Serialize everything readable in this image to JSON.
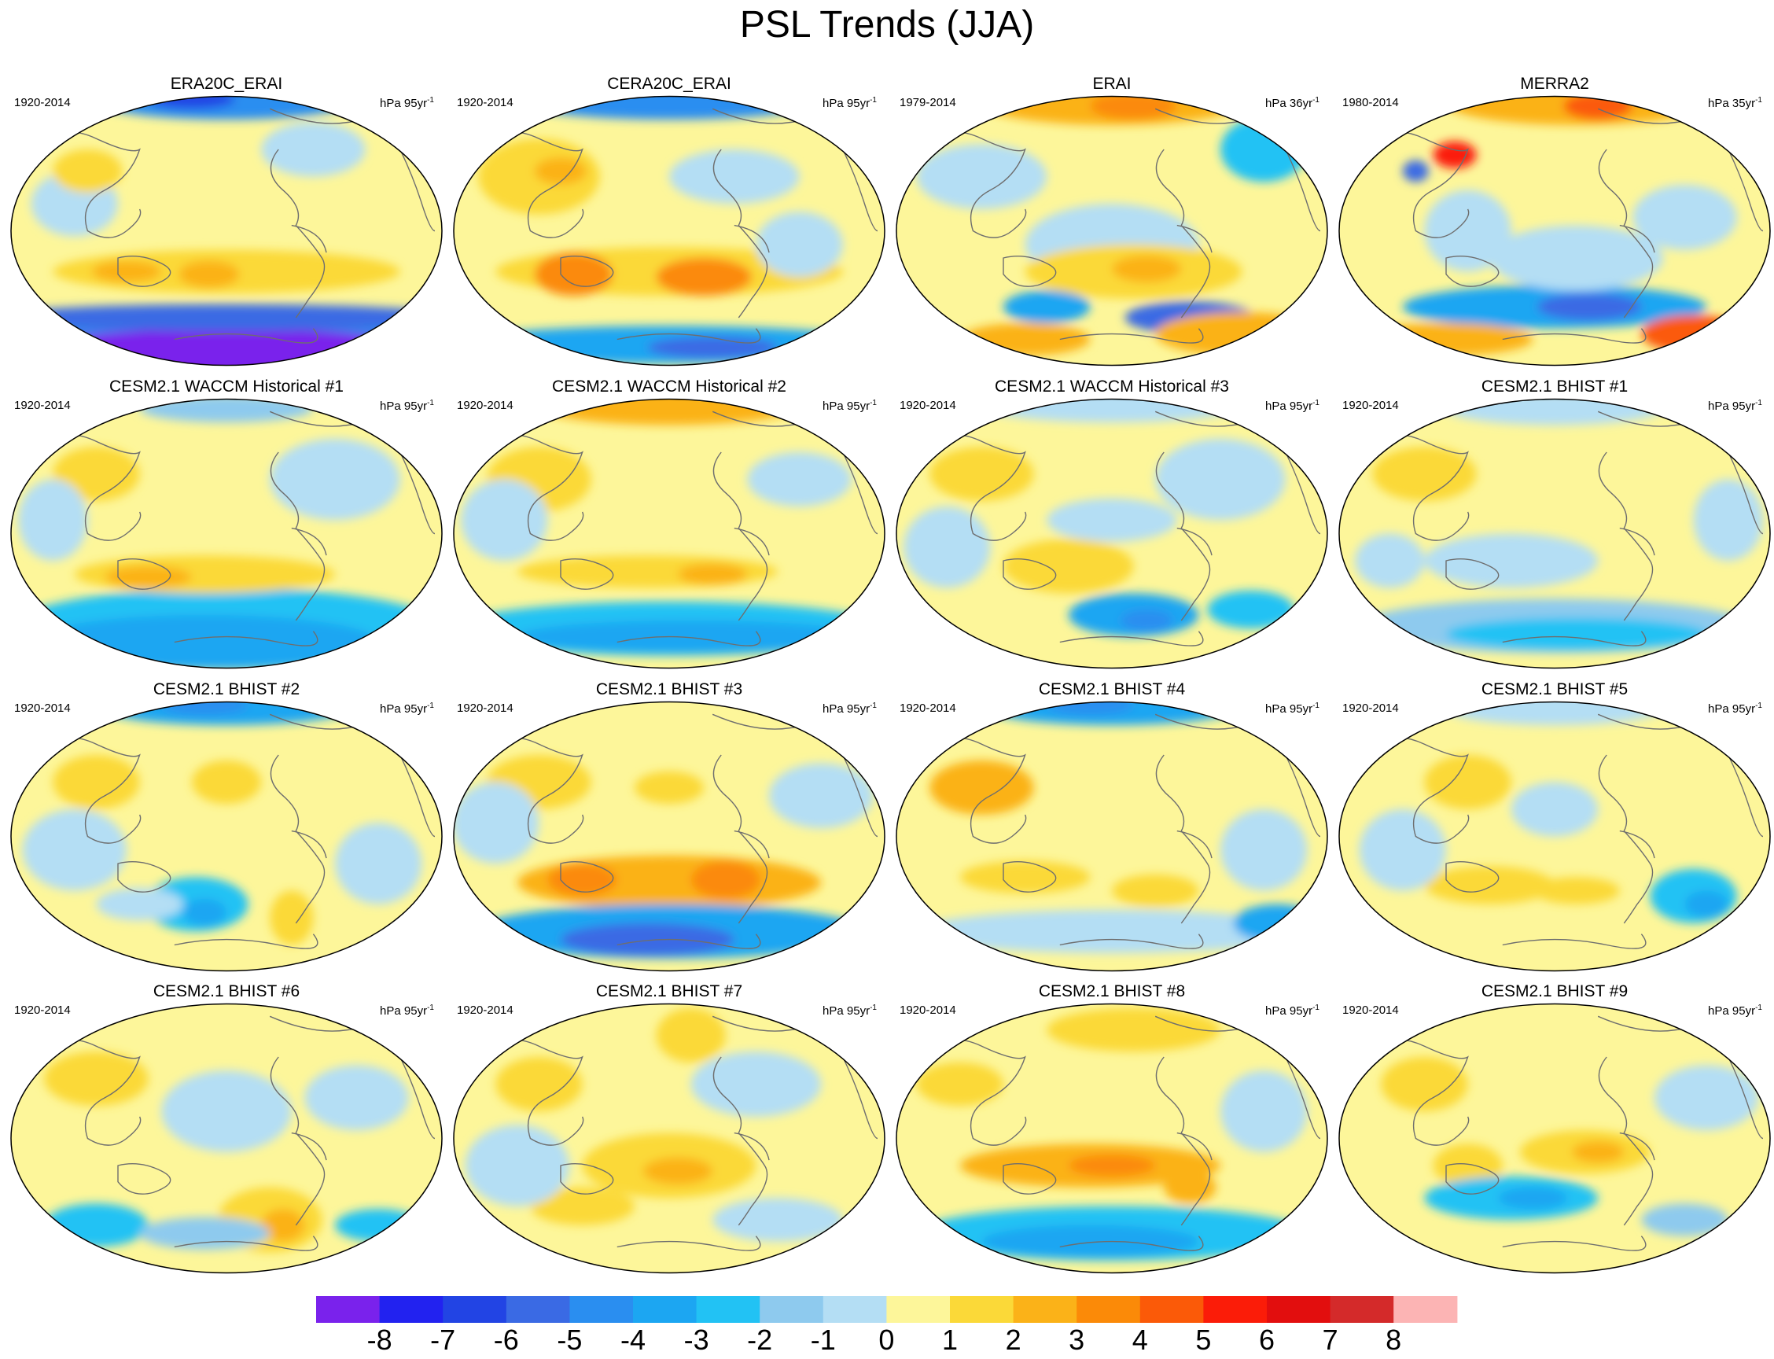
{
  "title": "PSL Trends (JJA)",
  "units_prefix": "hPa ",
  "units_suffix": "yr",
  "units_exp": "-1",
  "panels": [
    {
      "title": "ERA20C_ERAI",
      "period": "1920-2014",
      "years": "95"
    },
    {
      "title": "CERA20C_ERAI",
      "period": "1920-2014",
      "years": "95"
    },
    {
      "title": "ERAI",
      "period": "1979-2014",
      "years": "36"
    },
    {
      "title": "MERRA2",
      "period": "1980-2014",
      "years": "35"
    },
    {
      "title": "CESM2.1 WACCM Historical #1",
      "period": "1920-2014",
      "years": "95"
    },
    {
      "title": "CESM2.1 WACCM Historical #2",
      "period": "1920-2014",
      "years": "95"
    },
    {
      "title": "CESM2.1 WACCM Historical #3",
      "period": "1920-2014",
      "years": "95"
    },
    {
      "title": "CESM2.1 BHIST #1",
      "period": "1920-2014",
      "years": "95"
    },
    {
      "title": "CESM2.1 BHIST #2",
      "period": "1920-2014",
      "years": "95"
    },
    {
      "title": "CESM2.1 BHIST #3",
      "period": "1920-2014",
      "years": "95"
    },
    {
      "title": "CESM2.1 BHIST #4",
      "period": "1920-2014",
      "years": "95"
    },
    {
      "title": "CESM2.1 BHIST #5",
      "period": "1920-2014",
      "years": "95"
    },
    {
      "title": "CESM2.1 BHIST #6",
      "period": "1920-2014",
      "years": "95"
    },
    {
      "title": "CESM2.1 BHIST #7",
      "period": "1920-2014",
      "years": "95"
    },
    {
      "title": "CESM2.1 BHIST #8",
      "period": "1920-2014",
      "years": "95"
    },
    {
      "title": "CESM2.1 BHIST #9",
      "period": "1920-2014",
      "years": "95"
    }
  ],
  "colorbar": {
    "labels": [
      "-8",
      "-7",
      "-6",
      "-5",
      "-4",
      "-3",
      "-2",
      "-1",
      "0",
      "1",
      "2",
      "3",
      "4",
      "5",
      "6",
      "7",
      "8"
    ],
    "colors": [
      "#7a22ec",
      "#2222f0",
      "#2244e4",
      "#3a6ae4",
      "#2a8ef0",
      "#1ca6f2",
      "#22c2f4",
      "#8ecaee",
      "#b4def4",
      "#fdf69a",
      "#fbd938",
      "#fbb218",
      "#fb8a08",
      "#fb5a08",
      "#fb1c08",
      "#e20e0e",
      "#d42a2a",
      "#fcb4b4"
    ]
  }
}
